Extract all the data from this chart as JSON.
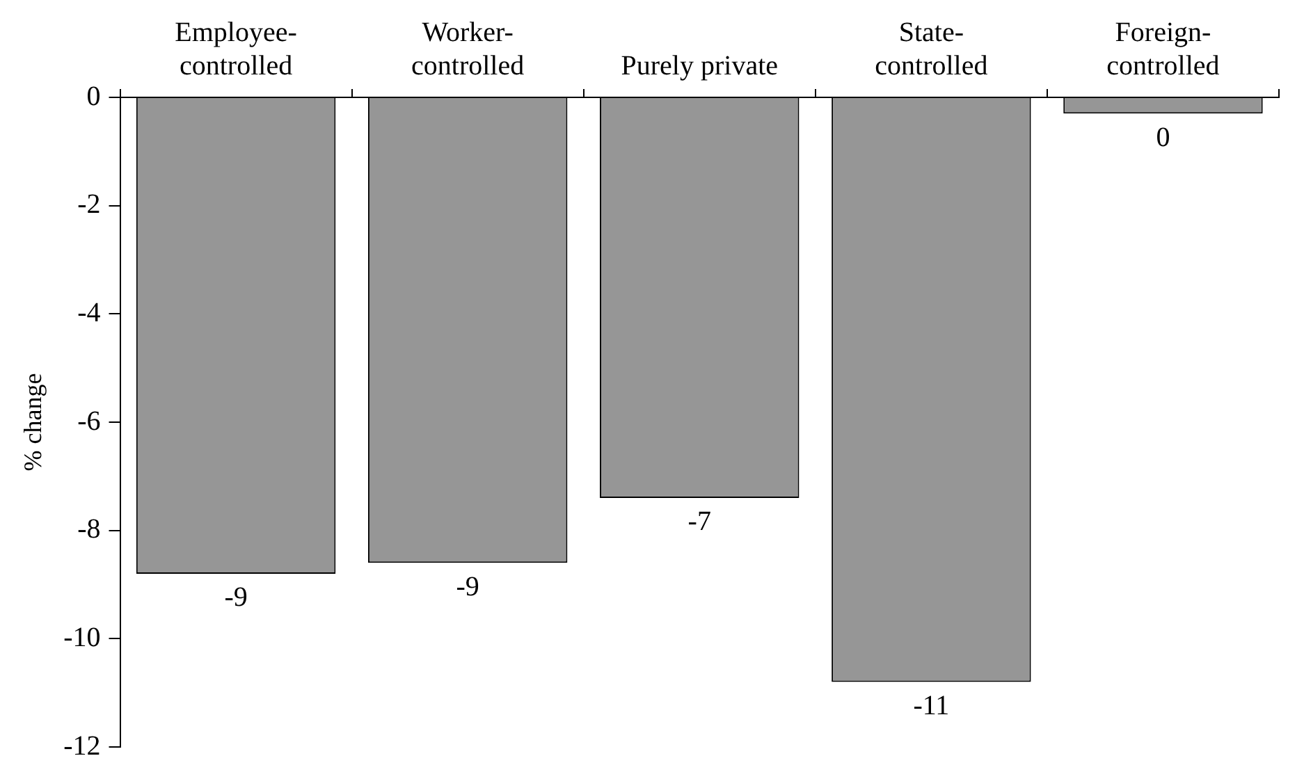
{
  "chart_data": {
    "type": "bar",
    "ylabel": "% change",
    "categories": [
      "Employee-controlled",
      "Worker-controlled",
      "Purely private",
      "State-controlled",
      "Foreign-controlled"
    ],
    "values": [
      -8.8,
      -8.6,
      -7.4,
      -10.8,
      -0.3
    ],
    "value_labels": [
      "-9",
      "-9",
      "-7",
      "-11",
      "0"
    ],
    "color": "#969696",
    "ylim": [
      -12,
      0
    ],
    "yticks": [
      -12,
      -10,
      -8,
      -6,
      -4,
      -2,
      0
    ],
    "grid": false,
    "legend": false
  }
}
